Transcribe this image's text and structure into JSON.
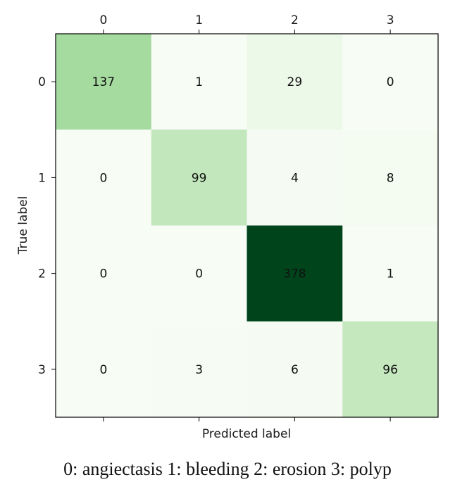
{
  "chart_data": {
    "type": "heatmap",
    "title": "",
    "xlabel": "Predicted label",
    "ylabel": "True label",
    "x_ticks": [
      "0",
      "1",
      "2",
      "3"
    ],
    "y_ticks": [
      "0",
      "1",
      "2",
      "3"
    ],
    "matrix": [
      [
        137,
        1,
        29,
        0
      ],
      [
        0,
        99,
        4,
        8
      ],
      [
        0,
        0,
        378,
        1
      ],
      [
        0,
        3,
        6,
        96
      ]
    ],
    "vmin": 0,
    "vmax": 378,
    "colormap": "Greens",
    "x_tick_position": "top",
    "grid": false,
    "legend": "none"
  },
  "caption": "0: angiectasis 1: bleeding 2: erosion 3: polyp"
}
